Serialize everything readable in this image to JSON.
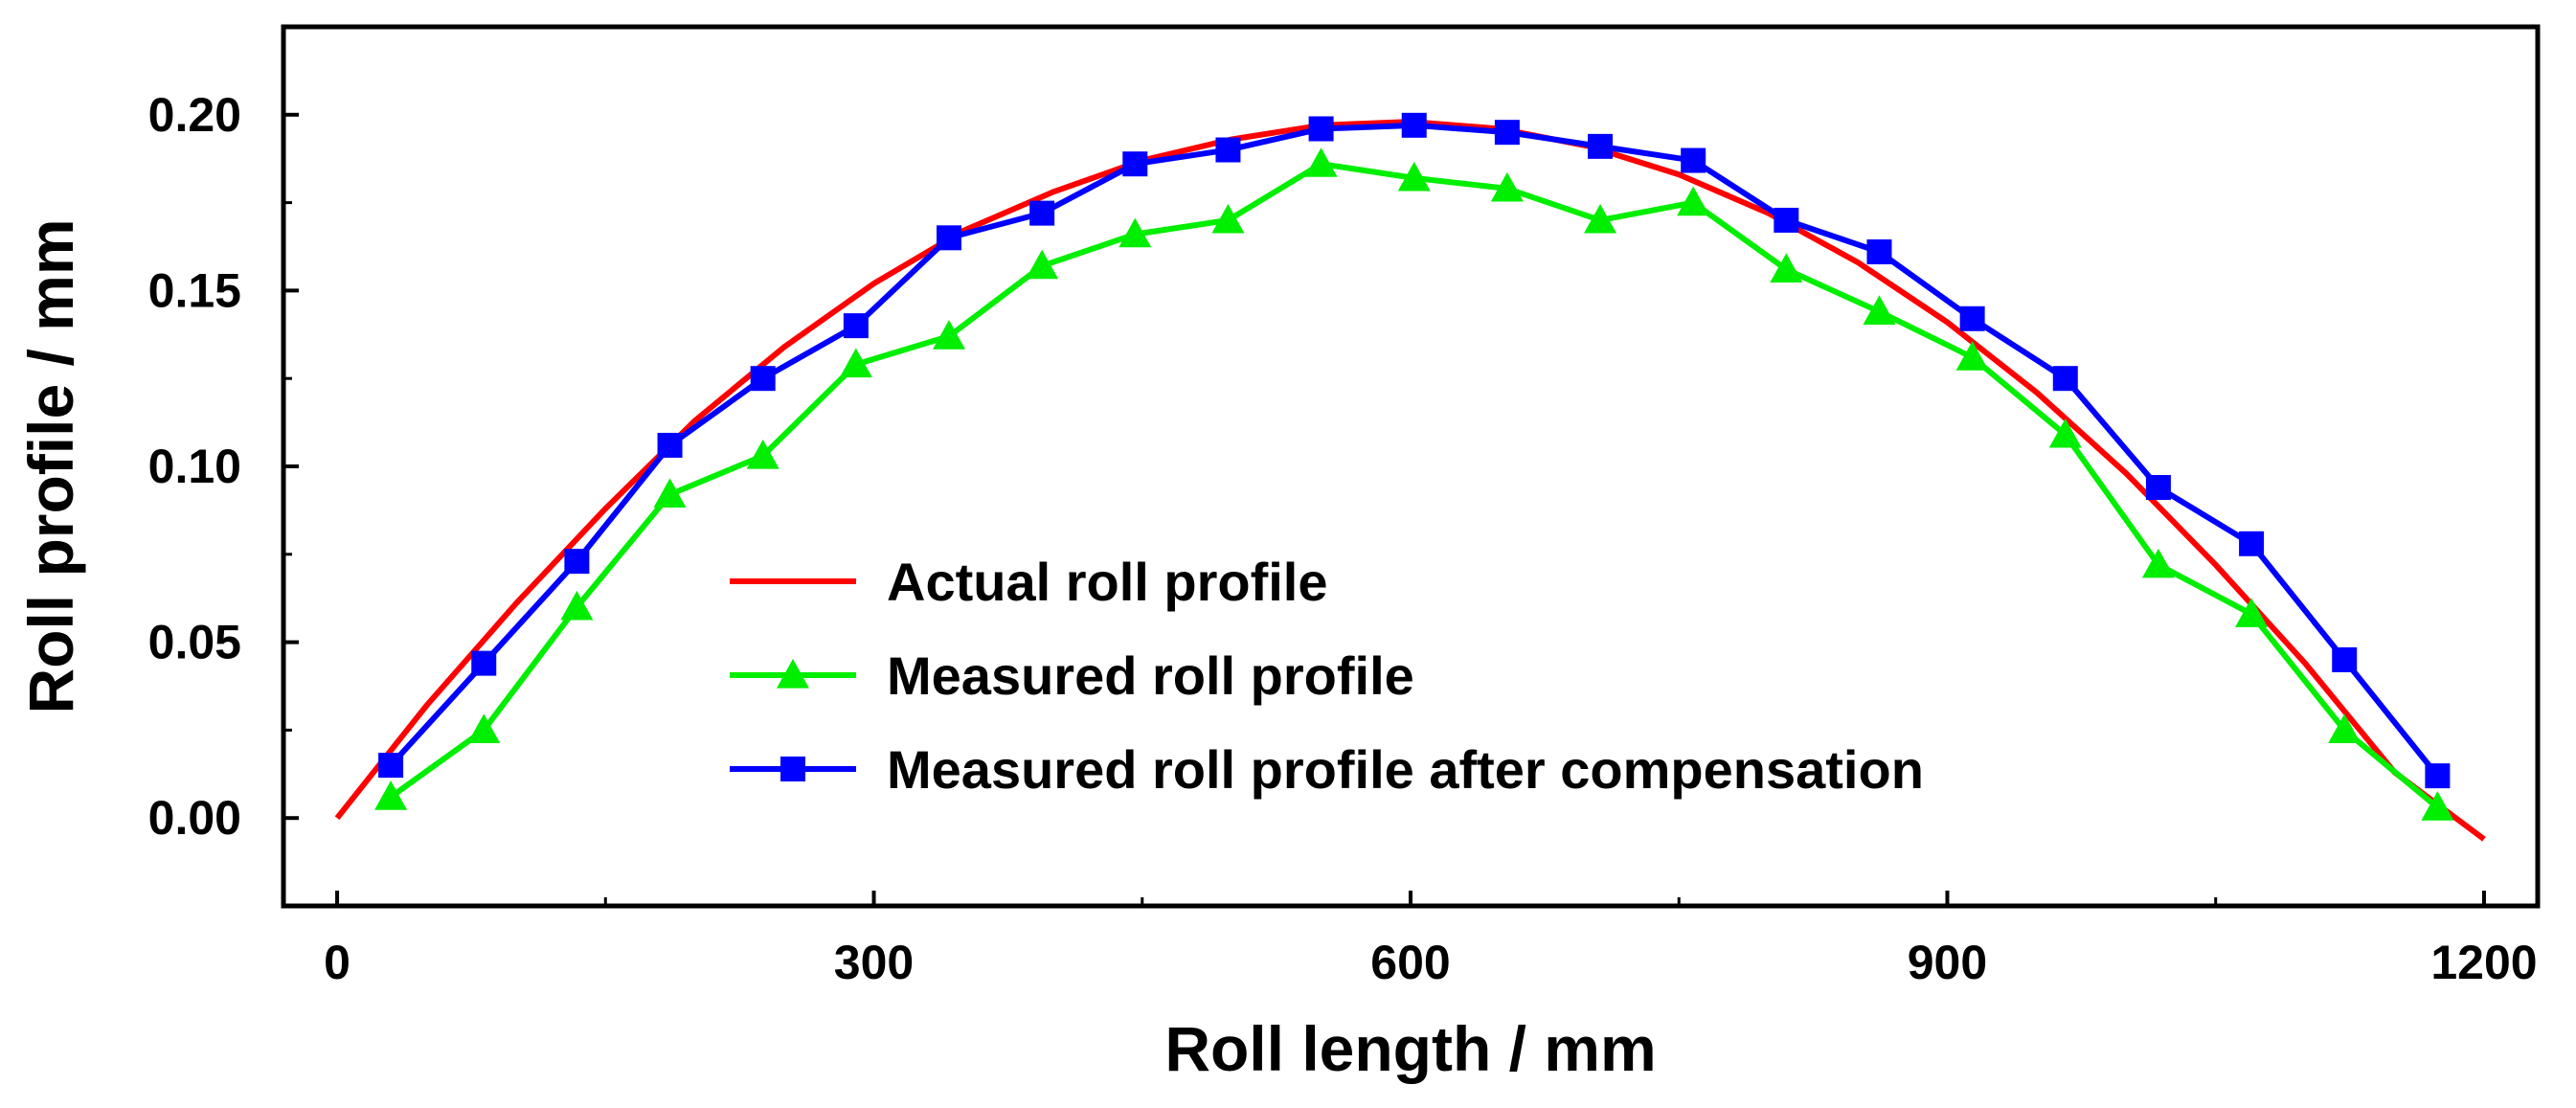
{
  "chart_data": {
    "type": "line",
    "title": "",
    "xlabel": "Roll length / mm",
    "ylabel": "Roll profile / mm",
    "xlim": [
      -30,
      1230
    ],
    "ylim": [
      -0.025,
      0.225
    ],
    "xticks": [
      0,
      300,
      600,
      900,
      1200
    ],
    "xtick_labels": [
      "0",
      "300",
      "600",
      "900",
      "1200"
    ],
    "yticks": [
      0.0,
      0.05,
      0.1,
      0.15,
      0.2
    ],
    "ytick_labels": [
      "0.00",
      "0.05",
      "0.10",
      "0.15",
      "0.20"
    ],
    "grid": false,
    "legend_position": "center-left",
    "series": [
      {
        "name": "Actual roll profile",
        "color": "#ff0000",
        "marker": "none",
        "x": [
          0,
          50,
          100,
          150,
          200,
          250,
          300,
          350,
          400,
          450,
          500,
          550,
          600,
          650,
          700,
          750,
          800,
          850,
          900,
          950,
          1000,
          1050,
          1100,
          1150,
          1200
        ],
        "values": [
          0.0,
          0.032,
          0.061,
          0.088,
          0.113,
          0.134,
          0.152,
          0.167,
          0.178,
          0.187,
          0.193,
          0.197,
          0.198,
          0.196,
          0.191,
          0.183,
          0.172,
          0.158,
          0.141,
          0.121,
          0.098,
          0.072,
          0.044,
          0.013,
          -0.006
        ]
      },
      {
        "name": "Measured roll profile",
        "color": "#00ee00",
        "marker": "triangle",
        "x": [
          30,
          82,
          134,
          186,
          238,
          290,
          342,
          394,
          446,
          498,
          550,
          602,
          654,
          706,
          758,
          810,
          862,
          914,
          966,
          1018,
          1070,
          1122,
          1174
        ],
        "values": [
          0.006,
          0.025,
          0.06,
          0.092,
          0.103,
          0.129,
          0.137,
          0.157,
          0.166,
          0.17,
          0.186,
          0.182,
          0.179,
          0.17,
          0.175,
          0.156,
          0.144,
          0.131,
          0.109,
          0.072,
          0.058,
          0.025,
          0.003
        ]
      },
      {
        "name": "Measured roll profile after compensation",
        "color": "#0000ff",
        "marker": "square",
        "x": [
          30,
          82,
          134,
          186,
          238,
          290,
          342,
          394,
          446,
          498,
          550,
          602,
          654,
          706,
          758,
          810,
          862,
          914,
          966,
          1018,
          1070,
          1122,
          1174
        ],
        "values": [
          0.015,
          0.044,
          0.073,
          0.106,
          0.125,
          0.14,
          0.165,
          0.172,
          0.186,
          0.19,
          0.196,
          0.197,
          0.195,
          0.191,
          0.187,
          0.17,
          0.161,
          0.142,
          0.125,
          0.094,
          0.078,
          0.045,
          0.012
        ]
      }
    ]
  }
}
